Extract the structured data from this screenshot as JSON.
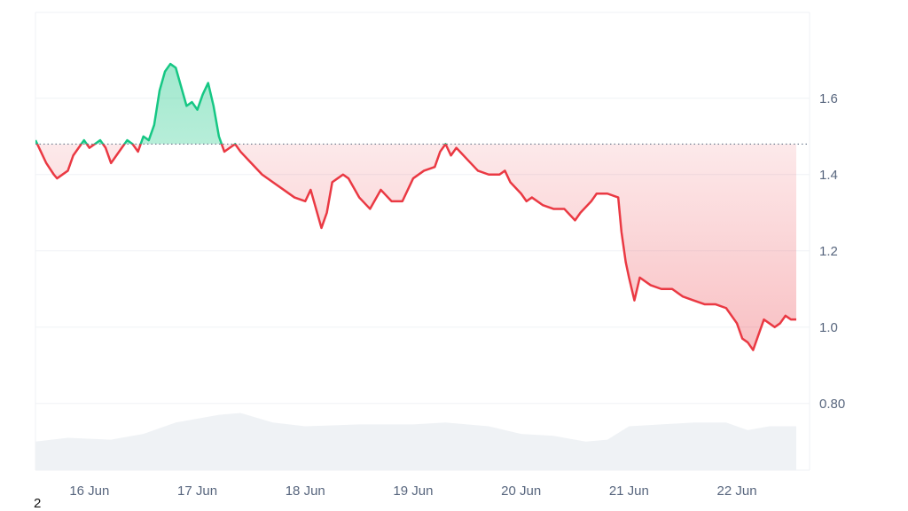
{
  "chart_data": {
    "type": "area",
    "baseline": 1.48,
    "y_ticks": [
      "1.6",
      "1.4",
      "1.2",
      "1.0",
      "0.80"
    ],
    "y_tick_values": [
      1.6,
      1.4,
      1.2,
      1.0,
      0.8
    ],
    "x_ticks": [
      "16 Jun",
      "17 Jun",
      "18 Jun",
      "19 Jun",
      "20 Jun",
      "21 Jun",
      "22 Jun"
    ],
    "ylim": [
      0.625,
      1.825
    ],
    "grid": true,
    "colors": {
      "up_line": "#16c784",
      "up_fill": "#16c784",
      "down_line": "#ea3943",
      "down_fill": "#ea3943",
      "baseline": "#58667e",
      "grid": "#eff2f5",
      "volume": "#eff2f5"
    },
    "series": [
      {
        "values": [
          [
            15.5,
            1.49
          ],
          [
            15.55,
            1.46
          ],
          [
            15.6,
            1.43
          ],
          [
            15.67,
            1.4
          ],
          [
            15.7,
            1.39
          ],
          [
            15.8,
            1.41
          ],
          [
            15.85,
            1.45
          ],
          [
            15.9,
            1.47
          ],
          [
            15.95,
            1.49
          ],
          [
            16.0,
            1.47
          ],
          [
            16.05,
            1.48
          ],
          [
            16.1,
            1.49
          ],
          [
            16.15,
            1.47
          ],
          [
            16.2,
            1.43
          ],
          [
            16.25,
            1.45
          ],
          [
            16.3,
            1.47
          ],
          [
            16.35,
            1.49
          ],
          [
            16.4,
            1.48
          ],
          [
            16.45,
            1.46
          ],
          [
            16.5,
            1.5
          ],
          [
            16.55,
            1.49
          ],
          [
            16.6,
            1.53
          ],
          [
            16.65,
            1.62
          ],
          [
            16.7,
            1.67
          ],
          [
            16.75,
            1.69
          ],
          [
            16.8,
            1.68
          ],
          [
            16.85,
            1.63
          ],
          [
            16.9,
            1.58
          ],
          [
            16.95,
            1.59
          ],
          [
            17.0,
            1.57
          ],
          [
            17.05,
            1.61
          ],
          [
            17.1,
            1.64
          ],
          [
            17.15,
            1.58
          ],
          [
            17.2,
            1.5
          ],
          [
            17.25,
            1.46
          ],
          [
            17.3,
            1.47
          ],
          [
            17.35,
            1.48
          ],
          [
            17.4,
            1.46
          ],
          [
            17.5,
            1.43
          ],
          [
            17.6,
            1.4
          ],
          [
            17.7,
            1.38
          ],
          [
            17.8,
            1.36
          ],
          [
            17.9,
            1.34
          ],
          [
            18.0,
            1.33
          ],
          [
            18.05,
            1.36
          ],
          [
            18.1,
            1.31
          ],
          [
            18.15,
            1.26
          ],
          [
            18.2,
            1.3
          ],
          [
            18.25,
            1.38
          ],
          [
            18.3,
            1.39
          ],
          [
            18.35,
            1.4
          ],
          [
            18.4,
            1.39
          ],
          [
            18.5,
            1.34
          ],
          [
            18.6,
            1.31
          ],
          [
            18.7,
            1.36
          ],
          [
            18.8,
            1.33
          ],
          [
            18.9,
            1.33
          ],
          [
            19.0,
            1.39
          ],
          [
            19.1,
            1.41
          ],
          [
            19.2,
            1.42
          ],
          [
            19.25,
            1.46
          ],
          [
            19.3,
            1.48
          ],
          [
            19.35,
            1.45
          ],
          [
            19.4,
            1.47
          ],
          [
            19.5,
            1.44
          ],
          [
            19.6,
            1.41
          ],
          [
            19.7,
            1.4
          ],
          [
            19.8,
            1.4
          ],
          [
            19.85,
            1.41
          ],
          [
            19.9,
            1.38
          ],
          [
            20.0,
            1.35
          ],
          [
            20.05,
            1.33
          ],
          [
            20.1,
            1.34
          ],
          [
            20.2,
            1.32
          ],
          [
            20.3,
            1.31
          ],
          [
            20.4,
            1.31
          ],
          [
            20.5,
            1.28
          ],
          [
            20.55,
            1.3
          ],
          [
            20.65,
            1.33
          ],
          [
            20.7,
            1.35
          ],
          [
            20.8,
            1.35
          ],
          [
            20.9,
            1.34
          ],
          [
            20.93,
            1.25
          ],
          [
            20.97,
            1.17
          ],
          [
            21.0,
            1.13
          ],
          [
            21.05,
            1.07
          ],
          [
            21.1,
            1.13
          ],
          [
            21.2,
            1.11
          ],
          [
            21.3,
            1.1
          ],
          [
            21.4,
            1.1
          ],
          [
            21.5,
            1.08
          ],
          [
            21.6,
            1.07
          ],
          [
            21.7,
            1.06
          ],
          [
            21.8,
            1.06
          ],
          [
            21.9,
            1.05
          ],
          [
            22.0,
            1.01
          ],
          [
            22.05,
            0.97
          ],
          [
            22.1,
            0.96
          ],
          [
            22.15,
            0.94
          ],
          [
            22.2,
            0.98
          ],
          [
            22.25,
            1.02
          ],
          [
            22.3,
            1.01
          ],
          [
            22.35,
            1.0
          ],
          [
            22.4,
            1.01
          ],
          [
            22.45,
            1.03
          ],
          [
            22.5,
            1.02
          ],
          [
            22.55,
            1.02
          ]
        ]
      }
    ],
    "volume": [
      [
        15.5,
        0.7
      ],
      [
        15.8,
        0.71
      ],
      [
        16.2,
        0.705
      ],
      [
        16.5,
        0.72
      ],
      [
        16.8,
        0.75
      ],
      [
        17.2,
        0.77
      ],
      [
        17.4,
        0.775
      ],
      [
        17.7,
        0.75
      ],
      [
        18.0,
        0.74
      ],
      [
        18.5,
        0.745
      ],
      [
        19.0,
        0.745
      ],
      [
        19.3,
        0.75
      ],
      [
        19.7,
        0.74
      ],
      [
        20.0,
        0.72
      ],
      [
        20.3,
        0.715
      ],
      [
        20.6,
        0.7
      ],
      [
        20.8,
        0.705
      ],
      [
        21.0,
        0.74
      ],
      [
        21.3,
        0.745
      ],
      [
        21.6,
        0.75
      ],
      [
        21.9,
        0.75
      ],
      [
        22.1,
        0.73
      ],
      [
        22.3,
        0.74
      ],
      [
        22.55,
        0.74
      ]
    ]
  },
  "footnote": "2"
}
